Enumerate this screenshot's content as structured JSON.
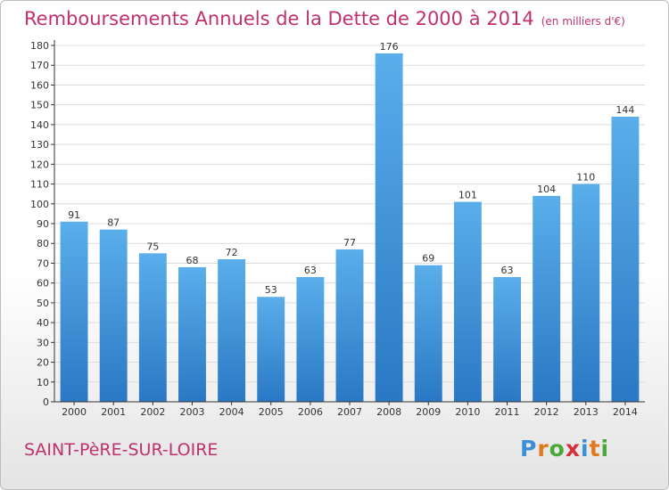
{
  "title": "Remboursements Annuels de la Dette de 2000 à 2014",
  "unit_note": "(en milliers d'€)",
  "town": "SAINT-PèRE-SUR-LOIRE",
  "brand": {
    "text": "Proxiti",
    "colors": [
      "#3a8fd6",
      "#e07a1f",
      "#4aa83a",
      "#d6303e",
      "#3a8fd6",
      "#e07a1f",
      "#4aa83a"
    ]
  },
  "colors": {
    "title": "#c0306e",
    "bar_top": "#5aaeea",
    "bar_bottom": "#2a78c4",
    "axis": "#333333",
    "grid": "#dcdcdc"
  },
  "chart_data": {
    "type": "bar",
    "categories": [
      "2000",
      "2001",
      "2002",
      "2003",
      "2004",
      "2005",
      "2006",
      "2007",
      "2008",
      "2009",
      "2010",
      "2011",
      "2012",
      "2013",
      "2014"
    ],
    "values": [
      91,
      87,
      75,
      68,
      72,
      53,
      63,
      77,
      176,
      69,
      101,
      63,
      104,
      110,
      144
    ],
    "ylim": [
      0,
      180
    ],
    "yticks": [
      0,
      10,
      20,
      30,
      40,
      50,
      60,
      70,
      80,
      90,
      100,
      110,
      120,
      130,
      140,
      150,
      160,
      170,
      180
    ],
    "grid": true,
    "legend": "none"
  }
}
